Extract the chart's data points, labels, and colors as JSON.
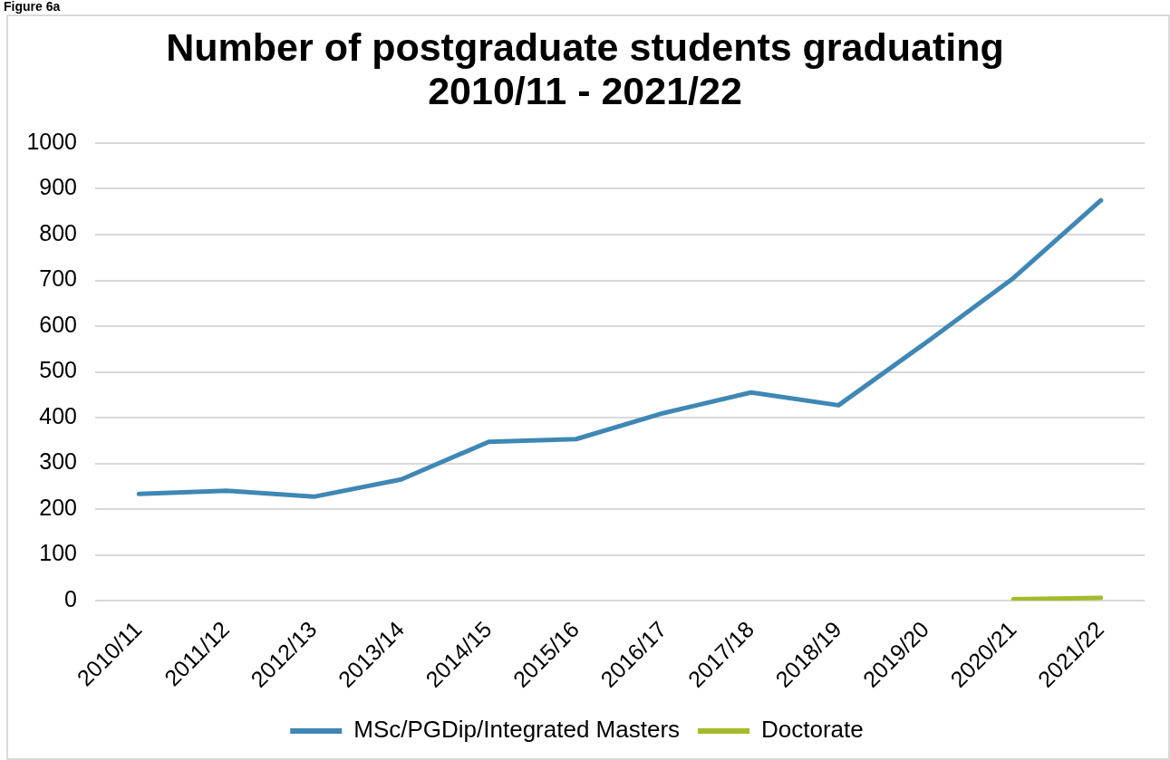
{
  "chart_data": {
    "type": "line",
    "title": "Number of postgraduate students graduating 2010/11 - 2021/22",
    "annotations": [
      "Figure 6a"
    ],
    "categories": [
      "2010/11",
      "2011/12",
      "2012/13",
      "2013/14",
      "2014/15",
      "2015/16",
      "2016/17",
      "2017/18",
      "2018/19",
      "2019/20",
      "2020/21",
      "2021/22"
    ],
    "series": [
      {
        "name": "MSc/PGDip/Integrated Masters",
        "color": "#3f87b5",
        "values": [
          233,
          240,
          227,
          265,
          347,
          353,
          410,
          455,
          427,
          564,
          705,
          875
        ]
      },
      {
        "name": "Doctorate",
        "color": "#a5bb2a",
        "values": [
          null,
          null,
          null,
          null,
          null,
          null,
          null,
          null,
          null,
          null,
          3,
          6
        ]
      }
    ],
    "ylim": [
      0,
      1000
    ],
    "yticks": [
      0,
      100,
      200,
      300,
      400,
      500,
      600,
      700,
      800,
      900,
      1000
    ],
    "grid": "y",
    "legend": "bottom",
    "marker": "none",
    "line_style": "solid"
  }
}
